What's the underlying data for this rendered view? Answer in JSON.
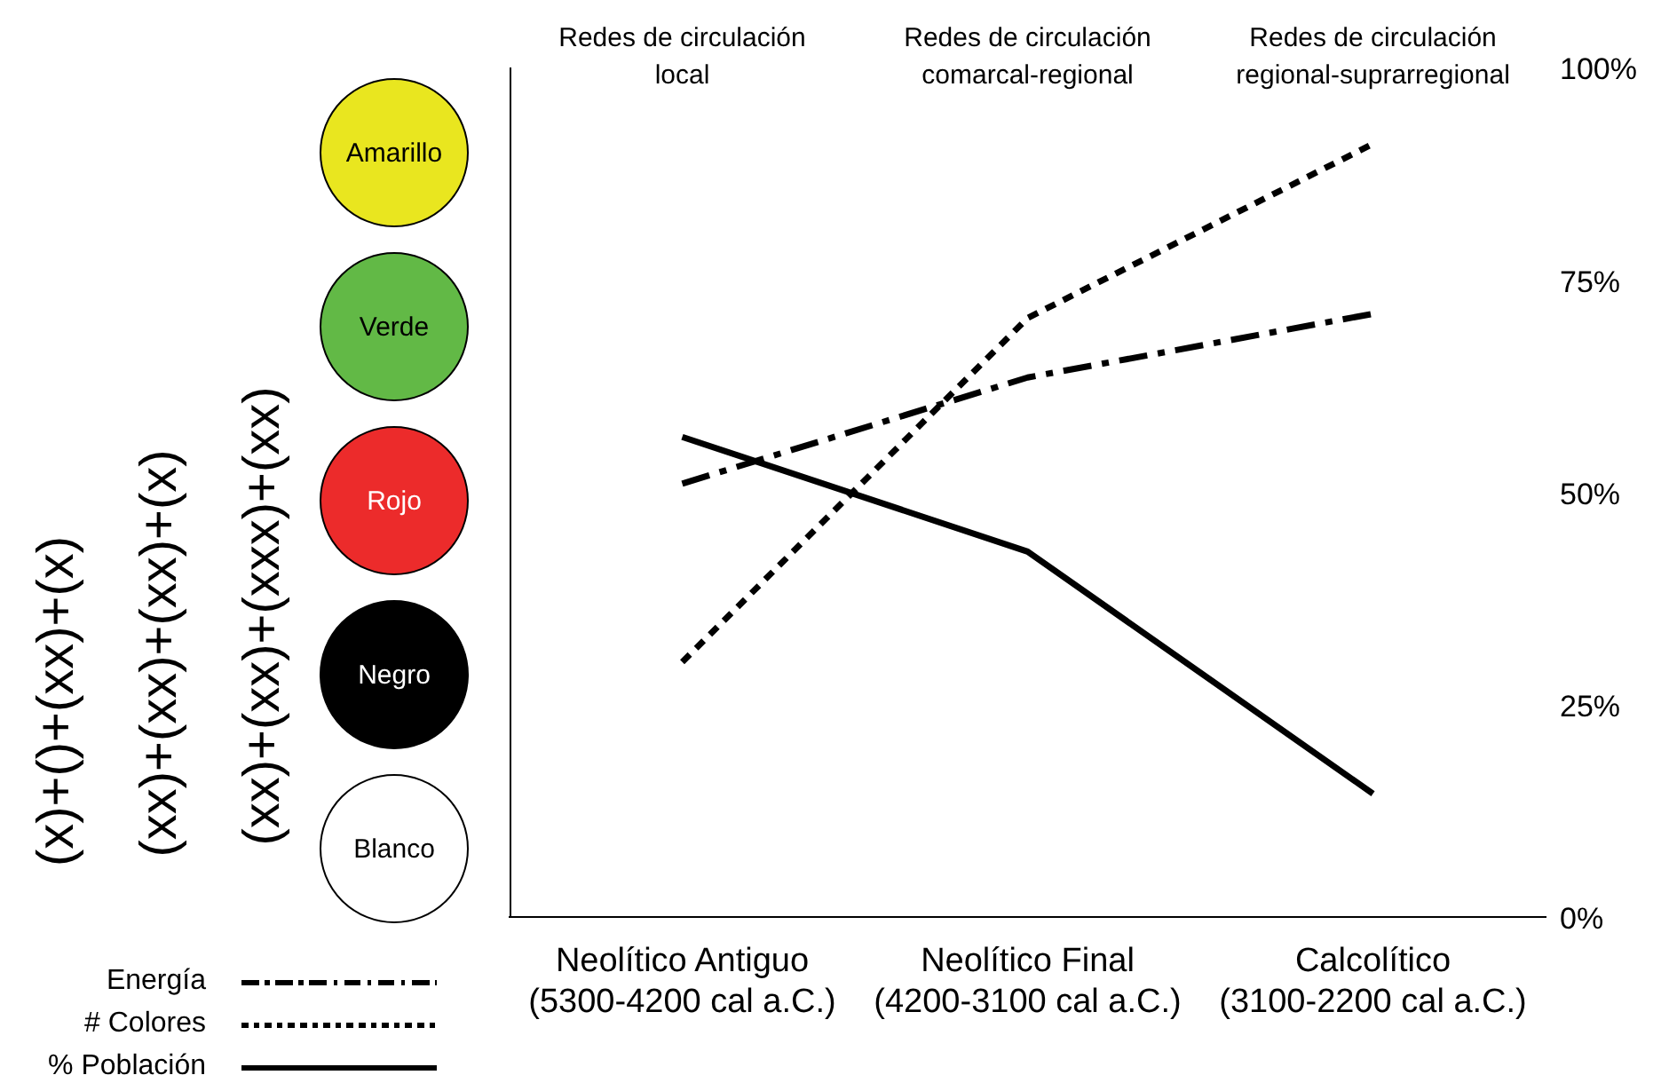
{
  "chart_data": {
    "type": "line",
    "categories": [
      "Neolítico Antiguo\n(5300-4200 cal a.C.)",
      "Neolítico Final\n(4200-3100 cal a.C.)",
      "Calcolítico\n(3100-2200 cal a.C.)"
    ],
    "series": [
      {
        "name": "Energía",
        "color": "#000000",
        "line_style": "dashed",
        "values": [
          51,
          63.5,
          71
        ]
      },
      {
        "name": "# Colores",
        "color": "#000000",
        "line_style": "dotted",
        "values": [
          30,
          70.5,
          91
        ]
      },
      {
        "name": "% Población",
        "color": "#000000",
        "line_style": "solid",
        "values": [
          56.5,
          43,
          14.5
        ]
      }
    ],
    "ylim": [
      0,
      100
    ],
    "yticks": [
      {
        "value": 0,
        "label": "0%"
      },
      {
        "value": 25,
        "label": "25%"
      },
      {
        "value": 50,
        "label": "50%"
      },
      {
        "value": 75,
        "label": "75%"
      },
      {
        "value": 100,
        "label": "100%"
      }
    ],
    "grid": false,
    "legend": "bottom left",
    "marker": "none",
    "annotations": [
      "Redes de circulación\nlocal",
      "Redes de circulación\ncomarcal-regional",
      "Redes de circulación\nregional-suprarregional",
      "Amarillo",
      "Verde",
      "Rojo",
      "Negro",
      "Blanco",
      "(x)+()+(xx)+(x)",
      "(xx)+(xx)+(xx)+(x)",
      "(xx)+(xx)+(xxx)+(xx)"
    ]
  }
}
